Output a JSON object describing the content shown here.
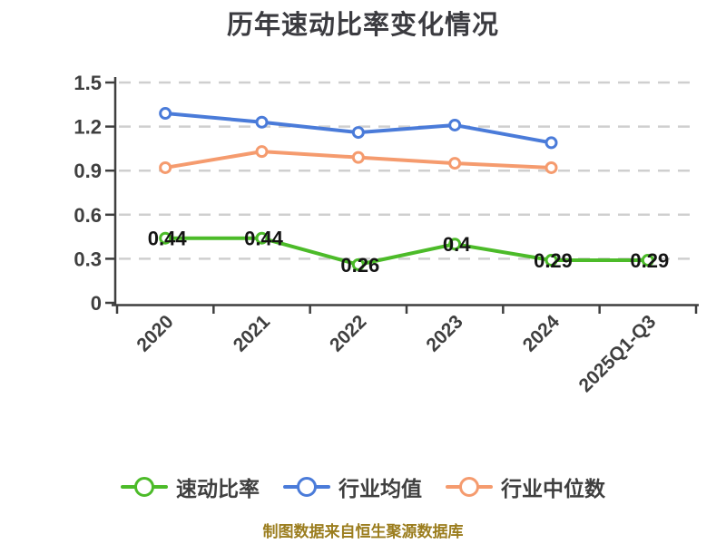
{
  "page": {
    "title": "历年速动比率变化情况",
    "footer": "制图数据来自恒生聚源数据库"
  },
  "colors": {
    "background": "#ffffff",
    "title_text": "#3b3b40",
    "axis": "#3f3f3f",
    "grid_line": "#cfcfcf",
    "tick_label": "#3f3f3f",
    "data_label": "#141414",
    "marker_fill": "#ffffff",
    "footer_text": "#9b7d1e",
    "series_green": "#4cbb29",
    "series_blue": "#4a7bd9",
    "series_orange": "#f59b6e"
  },
  "chart_data": {
    "type": "line",
    "title": "历年速动比率变化情况",
    "categories": [
      "2020",
      "2021",
      "2022",
      "2023",
      "2024",
      "2025Q1-Q3"
    ],
    "series": [
      {
        "id": "quick-ratio",
        "name": "速动比率",
        "color": "#4cbb29",
        "values": [
          0.44,
          0.44,
          0.26,
          0.4,
          0.29,
          0.29
        ],
        "point_labels": true
      },
      {
        "id": "industry-mean",
        "name": "行业均值",
        "color": "#4a7bd9",
        "values": [
          1.29,
          1.23,
          1.16,
          1.21,
          1.09,
          null
        ],
        "point_labels": false
      },
      {
        "id": "industry-median",
        "name": "行业中位数",
        "color": "#f59b6e",
        "values": [
          0.92,
          1.03,
          0.99,
          0.95,
          0.92,
          null
        ],
        "point_labels": false
      }
    ],
    "ylim": [
      0,
      1.5
    ],
    "yticks": [
      0,
      0.3,
      0.6,
      0.9,
      1.2,
      1.5
    ],
    "grid": "horizontal-dashed",
    "legend_position": "bottom",
    "x_label_rotation": 45,
    "marker_style": "circle-white-fill"
  }
}
